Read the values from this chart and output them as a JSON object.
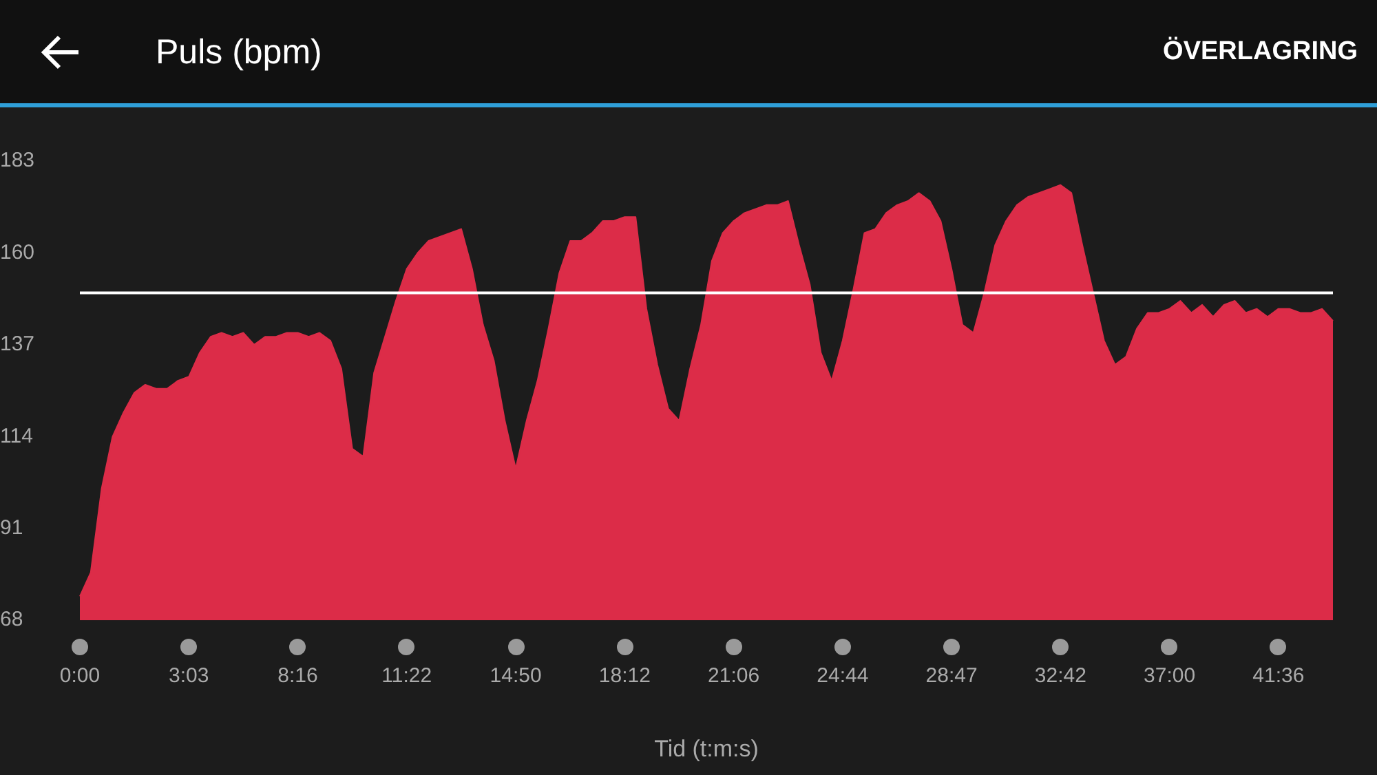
{
  "chart_data": {
    "type": "area",
    "title": "Puls (bpm)",
    "xlabel": "Tid (t:m:s)",
    "annotations": [
      "ÖVERLAGRING"
    ],
    "categories": [
      "0:00",
      null,
      null,
      null,
      null,
      null,
      null,
      null,
      null,
      null,
      "3:03",
      null,
      null,
      null,
      null,
      null,
      null,
      null,
      null,
      null,
      "8:16",
      null,
      null,
      null,
      null,
      null,
      null,
      null,
      null,
      null,
      "11:22",
      null,
      null,
      null,
      null,
      null,
      null,
      null,
      null,
      null,
      "14:50",
      null,
      null,
      null,
      null,
      null,
      null,
      null,
      null,
      null,
      "18:12",
      null,
      null,
      null,
      null,
      null,
      null,
      null,
      null,
      null,
      "21:06",
      null,
      null,
      null,
      null,
      null,
      null,
      null,
      null,
      null,
      "24:44",
      null,
      null,
      null,
      null,
      null,
      null,
      null,
      null,
      null,
      "28:47",
      null,
      null,
      null,
      null,
      null,
      null,
      null,
      null,
      null,
      "32:42",
      null,
      null,
      null,
      null,
      null,
      null,
      null,
      null,
      null,
      "37:00",
      null,
      null,
      null,
      null,
      null,
      null,
      null,
      null,
      null,
      "41:36",
      null,
      null,
      null,
      null,
      null
    ],
    "series": [
      {
        "color": "#dc2c48",
        "values": [
          74,
          80,
          101,
          114,
          120,
          125,
          127,
          126,
          126,
          128,
          129,
          135,
          139,
          140,
          139,
          140,
          137,
          139,
          139,
          140,
          140,
          139,
          140,
          138,
          131,
          111,
          109,
          130,
          139,
          148,
          156,
          160,
          163,
          164,
          165,
          166,
          156,
          142,
          133,
          118,
          106,
          118,
          128,
          141,
          155,
          163,
          163,
          165,
          168,
          168,
          169,
          169,
          146,
          132,
          121,
          118,
          131,
          142,
          158,
          165,
          168,
          170,
          171,
          172,
          172,
          173,
          162,
          152,
          135,
          128,
          138,
          151,
          165,
          166,
          170,
          172,
          173,
          175,
          173,
          168,
          156,
          142,
          140,
          150,
          162,
          168,
          172,
          174,
          175,
          176,
          177,
          175,
          162,
          150,
          138,
          132,
          134,
          141,
          145,
          145,
          146,
          148,
          145,
          147,
          144,
          147,
          148,
          145,
          146,
          144,
          146,
          146,
          145,
          145,
          146,
          143
        ]
      }
    ],
    "ylim": [
      68,
      183
    ],
    "yticks": [
      68,
      91,
      114,
      137,
      160,
      183
    ],
    "grid": false,
    "legend": false,
    "marker": "none",
    "ref_lines": [
      {
        "axis": "y",
        "value": 150,
        "color": "#ffffff"
      }
    ]
  }
}
